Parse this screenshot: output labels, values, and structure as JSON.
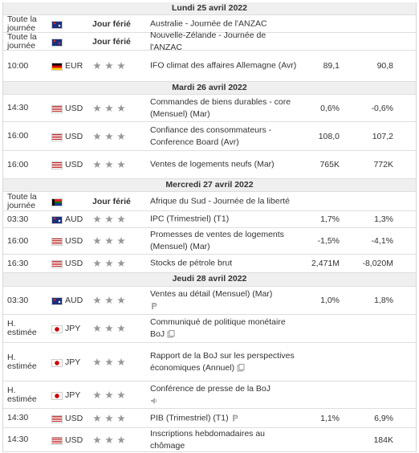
{
  "days": [
    {
      "date": "Lundi 25 avril 2022",
      "events": [
        {
          "time": "Toute la journée",
          "holiday": "Jour férié",
          "event": "Australie - Journée de l'ANZAC"
        },
        {
          "time": "Toute la journée",
          "holiday": "Jour férié",
          "event": "Nouvelle-Zélande - Journée de l'ANZAC"
        },
        {
          "time": "10:00",
          "currency": "EUR",
          "event": "IFO climat des affaires Allemagne (Avr)",
          "actual": "89,1",
          "previous": "90,8"
        }
      ]
    },
    {
      "date": "Mardi 26 avril 2022",
      "events": [
        {
          "time": "14:30",
          "currency": "USD",
          "event": "Commandes de biens durables - core (Mensuel) (Mar)",
          "actual": "0,6%",
          "previous": "-0,6%"
        },
        {
          "time": "16:00",
          "currency": "USD",
          "event": "Confiance des consommateurs - Conference Board (Avr)",
          "actual": "108,0",
          "previous": "107,2"
        },
        {
          "time": "16:00",
          "currency": "USD",
          "event": "Ventes de logements neufs (Mar)",
          "actual": "765K",
          "previous": "772K"
        }
      ]
    },
    {
      "date": "Mercredi 27 avril 2022",
      "events": [
        {
          "time": "Toute la journée",
          "holiday": "Jour férié",
          "event": "Afrique du Sud - Journée de la liberté"
        },
        {
          "time": "03:30",
          "currency": "AUD",
          "event": "IPC (Trimestriel) (T1)",
          "actual": "1,7%",
          "previous": "1,3%"
        },
        {
          "time": "16:00",
          "currency": "USD",
          "event": "Promesses de ventes de logements (Mensuel) (Mar)",
          "actual": "-1,5%",
          "previous": "-4,1%"
        },
        {
          "time": "16:30",
          "currency": "USD",
          "event": "Stocks de pétrole brut",
          "actual": "2,471M",
          "previous": "-8,020M"
        }
      ]
    },
    {
      "date": "Jeudi 28 avril 2022",
      "events": [
        {
          "time": "03:30",
          "currency": "AUD",
          "event": "Ventes au détail (Mensuel) (Mar)",
          "actual": "1,0%",
          "previous": "1,8%"
        },
        {
          "time": "H. estimée",
          "currency": "JPY",
          "event": "Communiqué de politique monétaire BoJ"
        },
        {
          "time": "H. estimée",
          "currency": "JPY",
          "event": "Rapport de la BoJ sur les perspectives économiques (Annuel)"
        },
        {
          "time": "H. estimée",
          "currency": "JPY",
          "event": "Conférence de presse de la BoJ"
        },
        {
          "time": "14:30",
          "currency": "USD",
          "event": "PIB (Trimestriel) (T1)",
          "actual": "1,1%",
          "previous": "6,9%"
        },
        {
          "time": "14:30",
          "currency": "USD",
          "event": "Inscriptions hebdomadaires au chômage",
          "previous": "184K"
        }
      ]
    }
  ]
}
